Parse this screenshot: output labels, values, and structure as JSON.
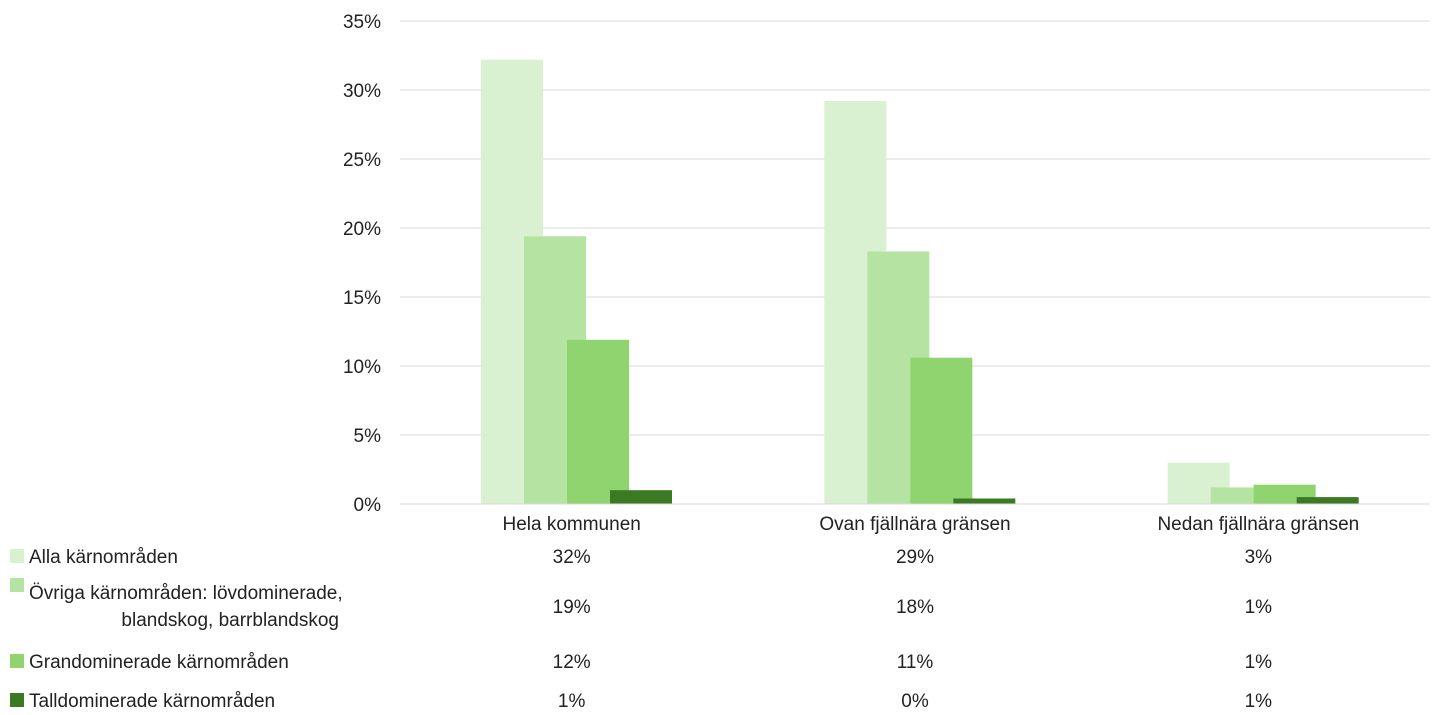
{
  "chart_data": {
    "type": "bar",
    "categories": [
      "Hela kommunen",
      "Ovan fjällnära gränsen",
      "Nedan fjällnära gränsen"
    ],
    "series": [
      {
        "name": "Alla kärnområden",
        "name_lines": [
          "Alla kärnområden"
        ],
        "color": "#d9f1d1",
        "values": [
          0.322,
          0.292,
          0.03
        ],
        "table_labels": [
          "32%",
          "29%",
          "3%"
        ]
      },
      {
        "name": "Övriga kärnområden: lövdominerade, blandskog, barrblandskog",
        "name_lines": [
          "Övriga kärnområden: lövdominerade,",
          "blandskog, barrblandskog"
        ],
        "color": "#b5e3a1",
        "values": [
          0.194,
          0.183,
          0.012
        ],
        "table_labels": [
          "19%",
          "18%",
          "1%"
        ]
      },
      {
        "name": "Grandominerade kärnområden",
        "name_lines": [
          "Grandominerade kärnområden"
        ],
        "color": "#8fd46f",
        "values": [
          0.119,
          0.106,
          0.014
        ],
        "table_labels": [
          "12%",
          "11%",
          "1%"
        ]
      },
      {
        "name": "Talldominerade kärnområden",
        "name_lines": [
          "Talldominerade kärnområden"
        ],
        "color": "#3b7a23",
        "values": [
          0.01,
          0.004,
          0.005
        ],
        "table_labels": [
          "1%",
          "0%",
          "1%"
        ]
      }
    ],
    "yaxis": {
      "min": 0,
      "max": 0.35,
      "ticks": [
        0,
        0.05,
        0.1,
        0.15,
        0.2,
        0.25,
        0.3,
        0.35
      ],
      "tick_labels": [
        "0%",
        "5%",
        "10%",
        "15%",
        "20%",
        "25%",
        "30%",
        "35%"
      ]
    },
    "gridlines": true,
    "data_table": true,
    "legend": "left of data table"
  }
}
